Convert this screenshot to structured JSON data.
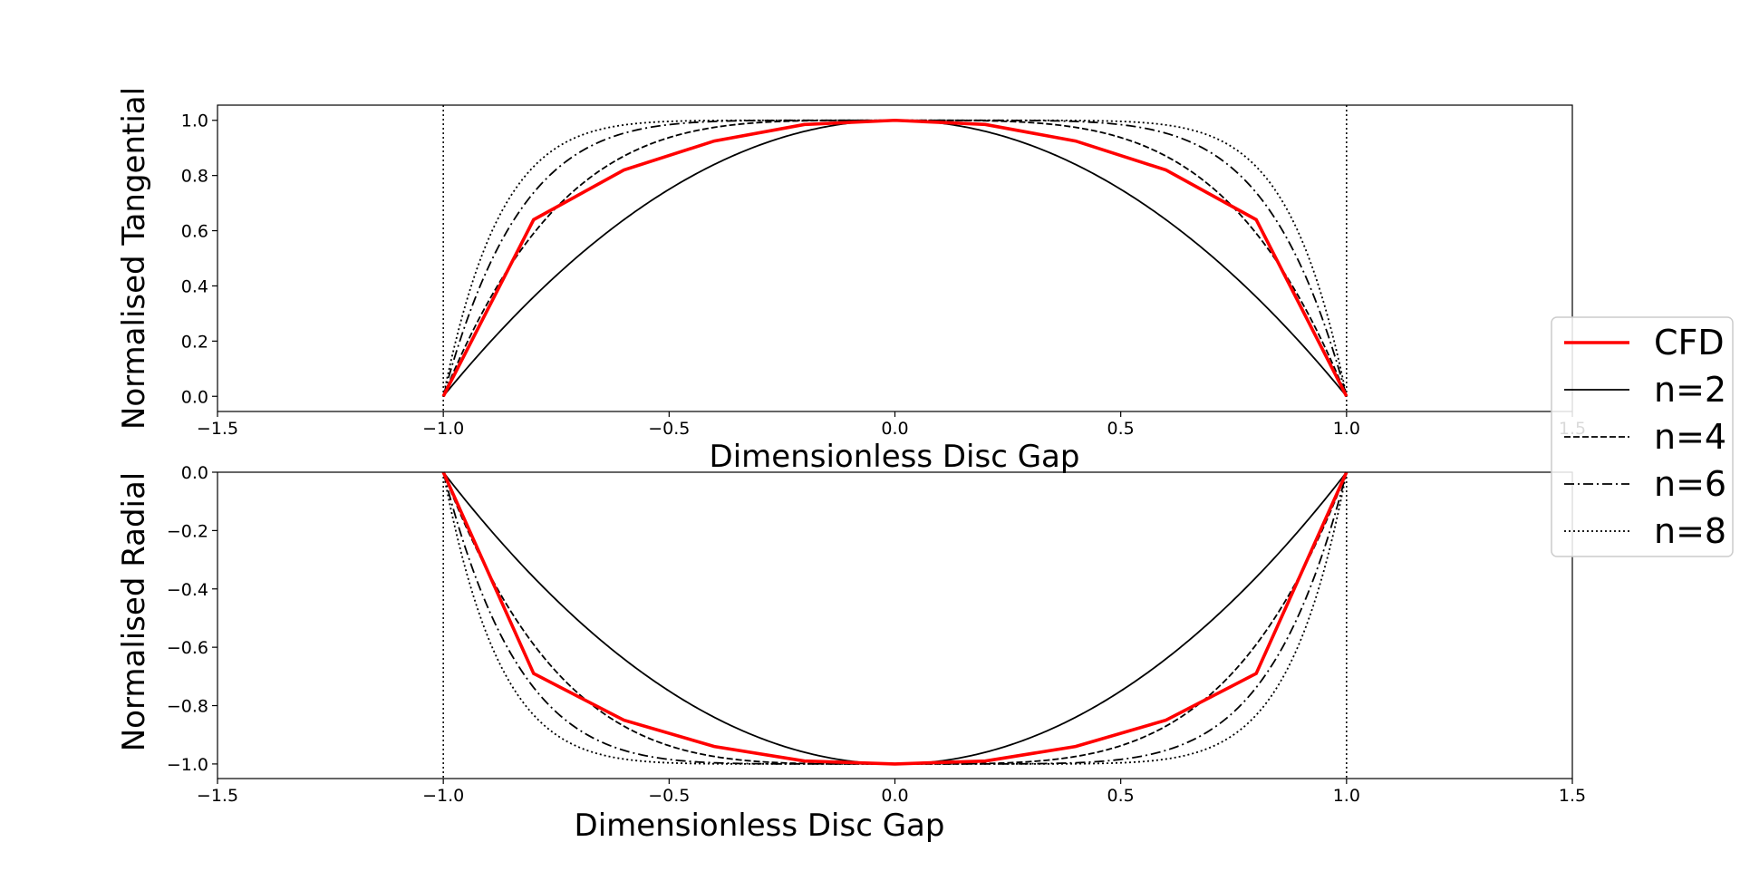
{
  "chart_data": [
    {
      "type": "line",
      "panel": "top",
      "title": "",
      "xlabel": "Dimensionless Disc Gap",
      "ylabel": "Normalised Tangential",
      "xlim": [
        -1.5,
        1.5
      ],
      "ylim": [
        -0.055,
        1.055
      ],
      "xticks": [
        -1.5,
        -1.0,
        -0.5,
        0.0,
        0.5,
        1.0,
        1.5
      ],
      "xtick_labels": [
        "−1.5",
        "−1.0",
        "−0.5",
        "0.0",
        "0.5",
        "1.0",
        "1.5"
      ],
      "yticks": [
        0.0,
        0.2,
        0.4,
        0.6,
        0.8,
        1.0
      ],
      "ytick_labels": [
        "0.0",
        "0.2",
        "0.4",
        "0.6",
        "0.8",
        "1.0"
      ],
      "grid": false,
      "reference_lines": [
        {
          "x": -1.0,
          "style": "dotted"
        },
        {
          "x": 1.0,
          "style": "dotted"
        }
      ],
      "series": [
        {
          "name": "CFD",
          "color": "#ff0000",
          "style": "solid-thick",
          "x": [
            -1.0,
            -0.8,
            -0.6,
            -0.4,
            -0.2,
            0.0,
            0.2,
            0.4,
            0.6,
            0.8,
            1.0
          ],
          "y": [
            0.0,
            0.64,
            0.82,
            0.925,
            0.985,
            1.0,
            0.985,
            0.925,
            0.82,
            0.64,
            0.0
          ]
        },
        {
          "name": "n=2",
          "color": "#000000",
          "style": "solid",
          "formula": "1 - x^2",
          "x_range": [
            -1,
            1
          ]
        },
        {
          "name": "n=4",
          "color": "#000000",
          "style": "dashed",
          "formula": "1 - x^4",
          "x_range": [
            -1,
            1
          ]
        },
        {
          "name": "n=6",
          "color": "#000000",
          "style": "dashdot",
          "formula": "1 - x^6",
          "x_range": [
            -1,
            1
          ]
        },
        {
          "name": "n=8",
          "color": "#000000",
          "style": "dotted",
          "formula": "1 - x^8",
          "x_range": [
            -1,
            1
          ]
        }
      ]
    },
    {
      "type": "line",
      "panel": "bottom",
      "title": "",
      "xlabel": "Dimensionless Disc Gap",
      "ylabel": "Normalised Radial",
      "xlim": [
        -1.5,
        1.5
      ],
      "ylim": [
        -1.05,
        0.0
      ],
      "xticks": [
        -1.5,
        -1.0,
        -0.5,
        0.0,
        0.5,
        1.0,
        1.5
      ],
      "xtick_labels": [
        "−1.5",
        "−1.0",
        "−0.5",
        "0.0",
        "0.5",
        "1.0",
        "1.5"
      ],
      "yticks": [
        0.0,
        -0.2,
        -0.4,
        -0.6,
        -0.8,
        -1.0
      ],
      "ytick_labels": [
        "0.0",
        "−0.2",
        "−0.4",
        "−0.6",
        "−0.8",
        "−1.0"
      ],
      "grid": false,
      "reference_lines": [
        {
          "x": -1.0,
          "style": "dotted"
        },
        {
          "x": 1.0,
          "style": "dotted"
        }
      ],
      "series": [
        {
          "name": "CFD",
          "color": "#ff0000",
          "style": "solid-thick",
          "x": [
            -1.0,
            -0.8,
            -0.6,
            -0.4,
            -0.2,
            0.0,
            0.2,
            0.4,
            0.6,
            0.8,
            1.0
          ],
          "y": [
            0.0,
            -0.69,
            -0.85,
            -0.94,
            -0.99,
            -1.0,
            -0.99,
            -0.94,
            -0.85,
            -0.69,
            0.0
          ]
        },
        {
          "name": "n=2",
          "color": "#000000",
          "style": "solid",
          "formula": "x^2 - 1",
          "x_range": [
            -1,
            1
          ]
        },
        {
          "name": "n=4",
          "color": "#000000",
          "style": "dashed",
          "formula": "x^4 - 1",
          "x_range": [
            -1,
            1
          ]
        },
        {
          "name": "n=6",
          "color": "#000000",
          "style": "dashdot",
          "formula": "x^6 - 1",
          "x_range": [
            -1,
            1
          ]
        },
        {
          "name": "n=8",
          "color": "#000000",
          "style": "dotted",
          "formula": "x^8 - 1",
          "x_range": [
            -1,
            1
          ]
        }
      ]
    }
  ],
  "legend": {
    "placement": "right",
    "entries": [
      {
        "label": "CFD",
        "style": "solid-thick",
        "color": "#ff0000"
      },
      {
        "label": "n=2",
        "style": "solid",
        "color": "#000000"
      },
      {
        "label": "n=4",
        "style": "dashed",
        "color": "#000000"
      },
      {
        "label": "n=6",
        "style": "dashdot",
        "color": "#000000"
      },
      {
        "label": "n=8",
        "style": "dotted",
        "color": "#000000"
      }
    ]
  }
}
